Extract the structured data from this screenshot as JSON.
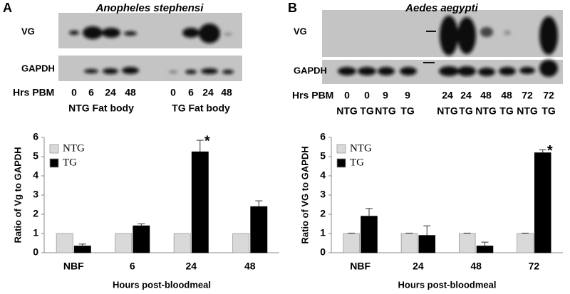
{
  "panels": [
    {
      "letter": "A",
      "species": "Anopheles stephensi",
      "rows": [
        "VG",
        "GAPDH"
      ],
      "lane_header": "Hrs PBM",
      "lanes": [
        "0",
        "6",
        "24",
        "48",
        "0",
        "6",
        "24",
        "48"
      ],
      "groups": [
        "NTG Fat body",
        "TG Fat body"
      ]
    },
    {
      "letter": "B",
      "species": "Aedes aegypti",
      "rows": [
        "VG",
        "GAPDH"
      ],
      "lane_header": "Hrs PBM",
      "lanes": [
        "0",
        "0",
        "9",
        "9",
        "24",
        "24",
        "48",
        "48",
        "72",
        "72"
      ],
      "genotypes": [
        "NTG",
        "TG",
        "NTG",
        "TG",
        "NTG",
        "TG",
        "NTG",
        "TG",
        "NTG",
        "TG"
      ]
    }
  ],
  "chart_data": [
    {
      "type": "bar",
      "y_label": "Ratio of Vg to GAPDH",
      "x_label": "Hours post-bloodmeal",
      "categories": [
        "NBF",
        "6",
        "24",
        "48"
      ],
      "series": [
        {
          "name": "NTG",
          "color": "#d9d9d9",
          "values": [
            1,
            1,
            1,
            1
          ]
        },
        {
          "name": "TG",
          "color": "#000000",
          "values": [
            0.35,
            1.4,
            5.25,
            2.4
          ],
          "errors": [
            0.1,
            0.1,
            0.6,
            0.3
          ]
        }
      ],
      "ylim": [
        0,
        6
      ],
      "yticks": [
        0,
        1,
        2,
        3,
        4,
        5,
        6
      ],
      "legend": "top-left",
      "annotations": [
        {
          "text": "*",
          "x": "24"
        }
      ]
    },
    {
      "type": "bar",
      "y_label": "Ratio of VG to GAPDH",
      "x_label": "Hours post-bloodmeal",
      "categories": [
        "NBF",
        "24",
        "48",
        "72"
      ],
      "series": [
        {
          "name": "NTG",
          "color": "#d9d9d9",
          "values": [
            1,
            1,
            1,
            1
          ],
          "errors": [
            0.02,
            0.02,
            0.02,
            0.02
          ]
        },
        {
          "name": "TG",
          "color": "#000000",
          "values": [
            1.9,
            0.9,
            0.35,
            5.2
          ],
          "errors": [
            0.4,
            0.5,
            0.2,
            0.15
          ]
        }
      ],
      "ylim": [
        0,
        6
      ],
      "yticks": [
        0,
        1,
        2,
        3,
        4,
        5,
        6
      ],
      "legend": "top-left",
      "annotations": [
        {
          "text": "*",
          "x": "72"
        }
      ]
    }
  ]
}
